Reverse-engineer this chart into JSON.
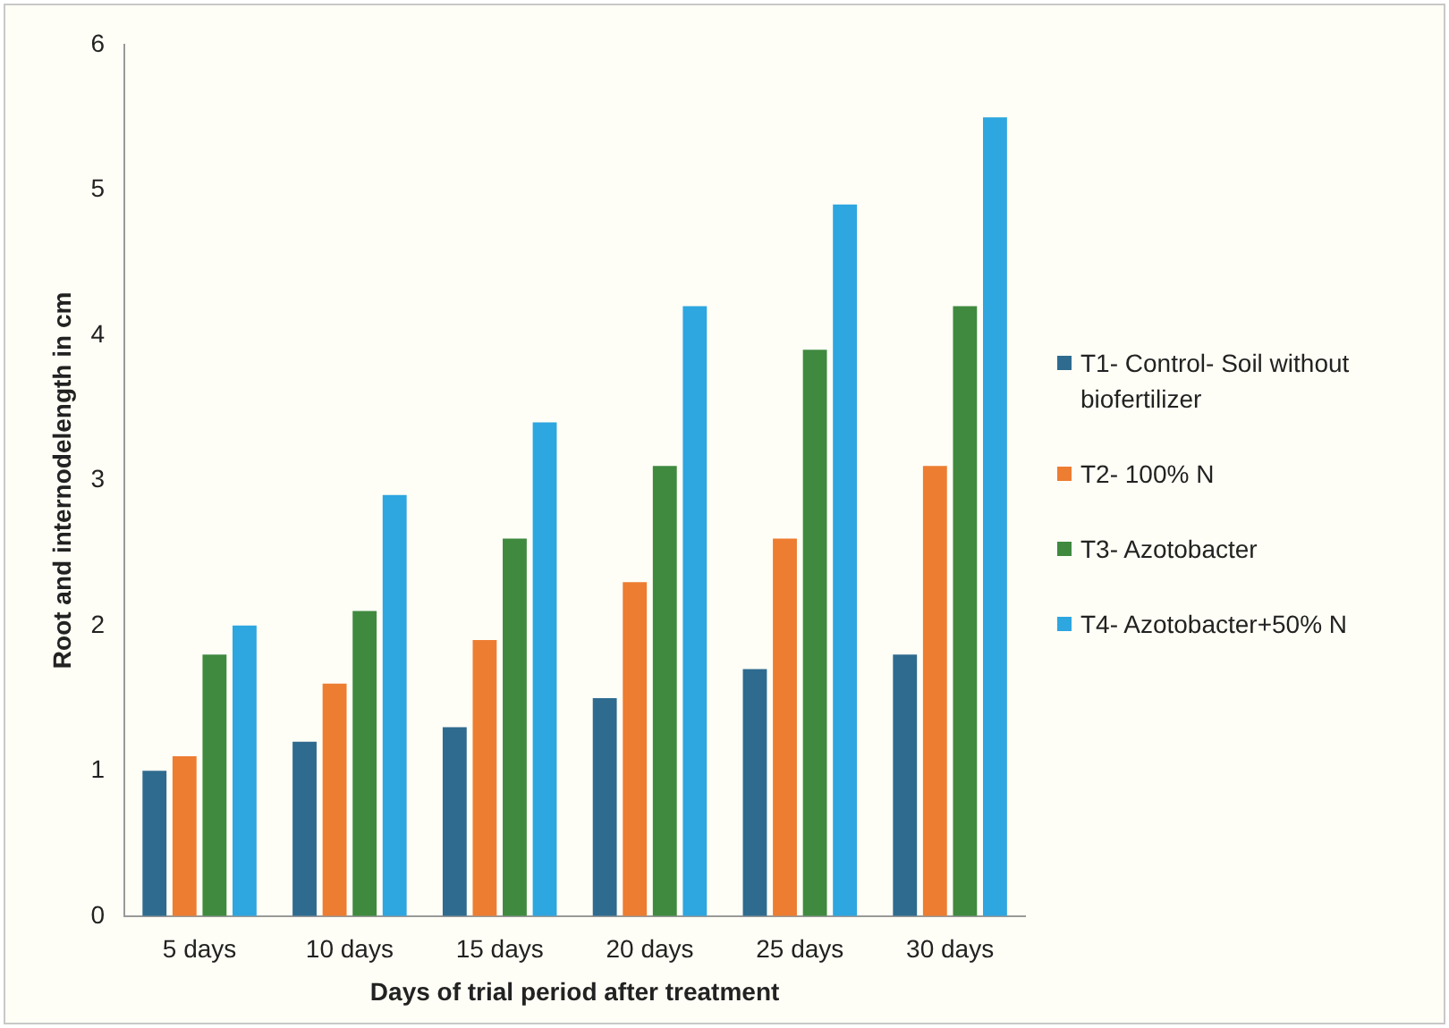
{
  "chart_data": {
    "type": "bar",
    "xlabel": "Days of trial period after treatment",
    "ylabel": "Root and internodelength in cm",
    "categories": [
      "5 days",
      "10 days",
      "15 days",
      "20 days",
      "25 days",
      "30 days"
    ],
    "series": [
      {
        "name": "T1- Control- Soil without biofertilizer",
        "color": "#2f6b8f",
        "values": [
          1.0,
          1.2,
          1.3,
          1.5,
          1.7,
          1.8
        ]
      },
      {
        "name": "T2- 100% N",
        "color": "#ed7d31",
        "values": [
          1.1,
          1.6,
          1.9,
          2.3,
          2.6,
          3.1
        ]
      },
      {
        "name": "T3- Azotobacter",
        "color": "#3f8a3f",
        "values": [
          1.8,
          2.1,
          2.6,
          3.1,
          3.9,
          4.2
        ]
      },
      {
        "name": "T4- Azotobacter+50% N",
        "color": "#2ea6e0",
        "values": [
          2.0,
          2.9,
          3.4,
          4.2,
          4.9,
          5.5
        ]
      }
    ],
    "ylim": [
      0,
      6
    ],
    "yticks": [
      0,
      1,
      2,
      3,
      4,
      5,
      6
    ],
    "grid": false,
    "legend": "right"
  }
}
